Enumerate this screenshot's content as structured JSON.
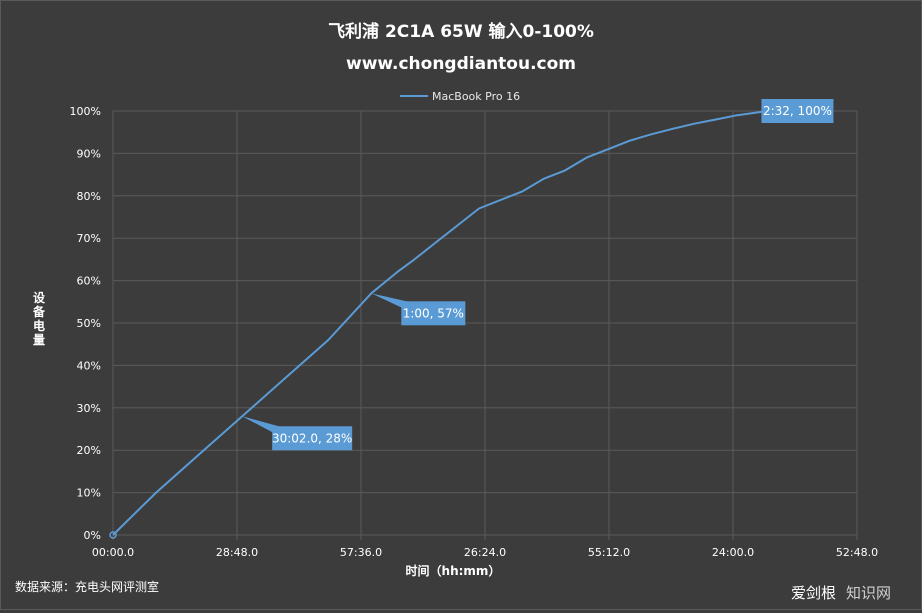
{
  "chart_data": {
    "type": "line",
    "title": "飞利浦 2C1A 65W 输入0-100%",
    "subtitle": "www.chongdiantou.com",
    "xlabel": "时间（hh:mm）",
    "ylabel": "设备电量",
    "x_ticks": [
      "00:00.0",
      "28:48.0",
      "57:36.0",
      "26:24.0",
      "55:12.0",
      "24:00.0",
      "52:48.0"
    ],
    "x_range_minutes": [
      0,
      172.8
    ],
    "y_ticks": [
      "0%",
      "10%",
      "20%",
      "30%",
      "40%",
      "50%",
      "60%",
      "70%",
      "80%",
      "90%",
      "100%"
    ],
    "ylim": [
      0,
      100
    ],
    "grid": true,
    "legend_position": "top-center",
    "series": [
      {
        "name": "MacBook Pro 16",
        "color": "#5b9bd5",
        "x_minutes": [
          0,
          5,
          10,
          20,
          30,
          40,
          50,
          60,
          66,
          70,
          75,
          80,
          85,
          90,
          95,
          100,
          105,
          110,
          115,
          120,
          125,
          130,
          135,
          140,
          145,
          150,
          152
        ],
        "y_percent": [
          0,
          5,
          10,
          19,
          28,
          37,
          46,
          57,
          62,
          65,
          69,
          73,
          77,
          79,
          81,
          84,
          86,
          89,
          91,
          93,
          94.5,
          95.8,
          97,
          98,
          99,
          99.7,
          100
        ]
      }
    ],
    "annotations": [
      {
        "label": "30:02.0, 28%",
        "x_minutes": 30,
        "y_percent": 28
      },
      {
        "label": "1:00, 57%",
        "x_minutes": 60,
        "y_percent": 57
      },
      {
        "label": "2:32, 100%",
        "x_minutes": 152,
        "y_percent": 100
      }
    ]
  },
  "source": "数据来源：充电头网评测室",
  "watermark": {
    "part1": "爱剑根",
    "part2": "知识网"
  },
  "colors": {
    "background": "#3c3c3c",
    "grid": "#5a5a5a",
    "line": "#5b9bd5",
    "callout": "#5b9bd5"
  }
}
